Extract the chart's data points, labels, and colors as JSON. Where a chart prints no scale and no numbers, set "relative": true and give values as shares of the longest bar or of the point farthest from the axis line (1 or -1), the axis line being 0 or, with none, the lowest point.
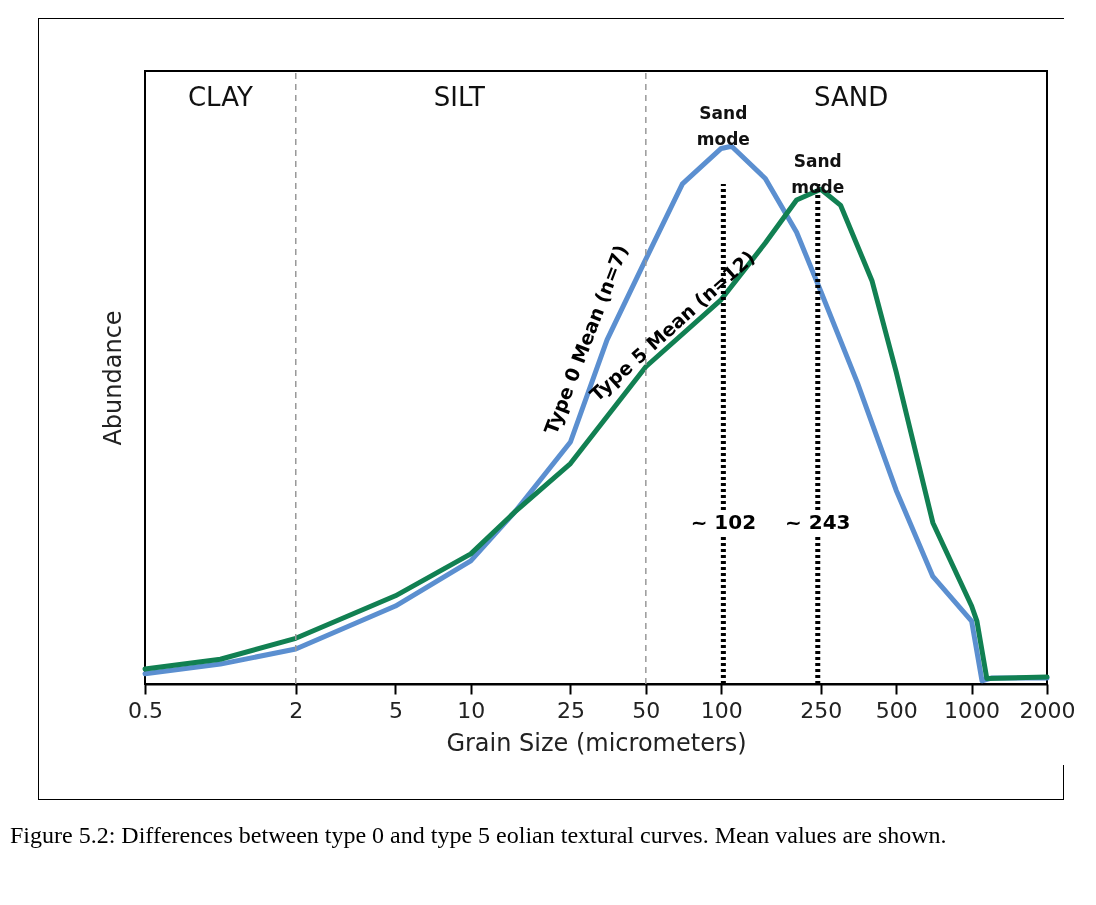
{
  "chart_data": {
    "type": "line",
    "xlabel": "Grain Size (micrometers)",
    "ylabel": "Abundance",
    "relative": true,
    "log": "x",
    "xlim": [
      0.5,
      2000
    ],
    "xticks": [
      0.5,
      2,
      5,
      10,
      25,
      50,
      100,
      250,
      500,
      1000,
      2000
    ],
    "grid": false,
    "line_style": "solid",
    "series": [
      {
        "name": "Type 0 Mean (n=7)",
        "color": "#5b8fd0",
        "x": [
          0.5,
          1,
          2,
          5,
          10,
          15,
          25,
          35,
          50,
          70,
          100,
          110,
          150,
          200,
          250,
          350,
          500,
          700,
          1000,
          1100,
          1200,
          2000
        ],
        "values": [
          0.019,
          0.037,
          0.065,
          0.145,
          0.229,
          0.32,
          0.45,
          0.64,
          0.79,
          0.93,
          0.996,
          1,
          0.94,
          0.84,
          0.73,
          0.56,
          0.36,
          0.2,
          0.117,
          0.006,
          0.011,
          0.011
        ]
      },
      {
        "name": "Type 5 Mean (n=12)",
        "color": "#118052",
        "x": [
          0.5,
          1,
          2,
          5,
          10,
          15,
          25,
          50,
          100,
          150,
          200,
          250,
          300,
          400,
          500,
          700,
          1000,
          1050,
          1150,
          2000
        ],
        "values": [
          0.028,
          0.046,
          0.085,
          0.164,
          0.242,
          0.32,
          0.41,
          0.59,
          0.715,
          0.82,
          0.9,
          0.92,
          0.89,
          0.75,
          0.58,
          0.3,
          0.145,
          0.117,
          0.01,
          0.013
        ]
      }
    ],
    "ref_lines": [
      {
        "axis": "x",
        "value": 2,
        "color": "#999999",
        "line_style": "dashed"
      },
      {
        "axis": "x",
        "value": 50,
        "color": "#999999",
        "line_style": "dashed"
      },
      {
        "axis": "x",
        "value": 102,
        "label": "~ 102",
        "color": "#000000",
        "line_style": "dotted"
      },
      {
        "axis": "x",
        "value": 243,
        "label": "~ 243",
        "color": "#000000",
        "line_style": "dotted"
      }
    ],
    "annotations": [
      "CLAY",
      "SILT",
      "SAND",
      "Sand mode",
      "Sand mode",
      "Figure 5.2:  Differences between type 0 and type 5 eolian textural curves. Mean values are shown."
    ]
  }
}
